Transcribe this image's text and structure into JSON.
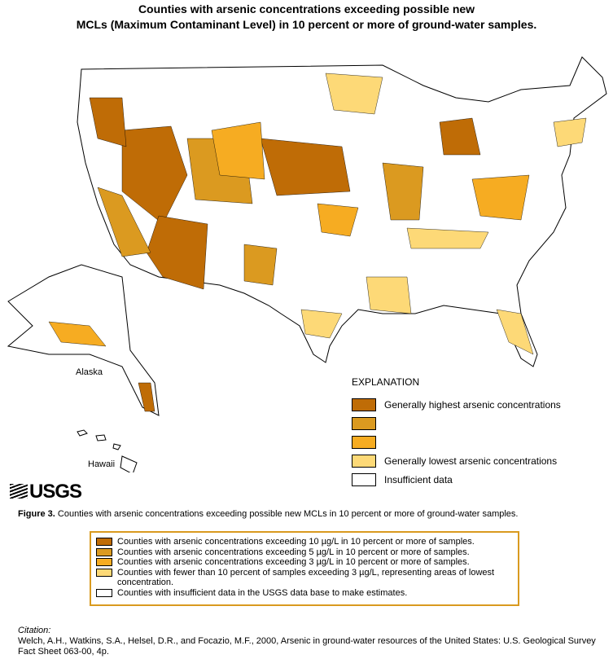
{
  "title": [
    "Counties with arsenic concentrations exceeding possible new",
    "MCLs (Maximum Contaminant Level) in 10 percent or more of ground-water samples."
  ],
  "map_labels": {
    "alaska": "Alaska",
    "hawaii": "Hawaii"
  },
  "explanation": {
    "title": "EXPLANATION",
    "items": [
      {
        "color": "#bf6c06",
        "label": "Generally highest arsenic concentrations"
      },
      {
        "color": "#db9a20"
      },
      {
        "color": "#f6ac22"
      },
      {
        "color": "#fdd977",
        "label": "Generally lowest arsenic concentrations"
      },
      {
        "color": "#ffffff",
        "label": "Insufficient data"
      }
    ]
  },
  "logo": "USGS",
  "caption": {
    "label": "Figure 3.",
    "text": "Counties with arsenic concentrations exceeding possible new MCLs in 10 percent or more of ground-water samples."
  },
  "box_legend": [
    "Counties with arsenic concentrations exceeding 10 µg/L in 10 percent or more of samples.",
    "Counties with arsenic concentrations exceeding 5 µg/L in 10 percent or more of samples.",
    "Counties with arsenic concentrations exceeding 3 µg/L in 10 percent or more of samples.",
    "Counties with fewer than 10 percent of samples exceeding 3 µg/L, representing areas of lowest concentration.",
    "Counties with insufficient data in the USGS data base to make estimates."
  ],
  "citation": {
    "label": "Citation:",
    "text": "Welch, A.H., Watkins, S.A., Helsel, D.R., and Focazio, M.F., 2000, Arsenic in ground-water resources of the United States: U.S. Geological Survey Fact Sheet 063-00, 4p."
  }
}
